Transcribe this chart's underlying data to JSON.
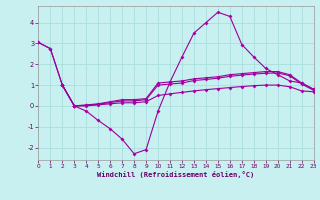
{
  "bg_color": "#c8f0f0",
  "line_color": "#990099",
  "marker_color": "#aa00aa",
  "grid_color": "#aadddd",
  "xlabel": "Windchill (Refroidissement éolien,°C)",
  "xlim": [
    0,
    23
  ],
  "ylim": [
    -2.6,
    4.8
  ],
  "yticks": [
    -2,
    -1,
    0,
    1,
    2,
    3,
    4
  ],
  "xticks": [
    0,
    1,
    2,
    3,
    4,
    5,
    6,
    7,
    8,
    9,
    10,
    11,
    12,
    13,
    14,
    15,
    16,
    17,
    18,
    19,
    20,
    21,
    22,
    23
  ],
  "series": [
    {
      "x": [
        0,
        1,
        2,
        3,
        4,
        5,
        6,
        7,
        8,
        9,
        10,
        11,
        12,
        13,
        14,
        15,
        16,
        17,
        18,
        19,
        20,
        21,
        22,
        23
      ],
      "y": [
        3.05,
        2.75,
        1.0,
        0.0,
        -0.25,
        -0.7,
        -1.1,
        -1.6,
        -2.3,
        -2.1,
        -0.25,
        1.15,
        2.35,
        3.5,
        4.0,
        4.5,
        4.3,
        2.95,
        2.35,
        1.8,
        1.5,
        1.2,
        1.1,
        0.8
      ]
    },
    {
      "x": [
        0,
        1,
        2,
        3,
        4,
        5,
        6,
        7,
        8,
        9,
        10,
        11,
        12,
        13,
        14,
        15,
        16,
        17,
        18,
        19,
        20,
        21,
        22,
        23
      ],
      "y": [
        3.05,
        2.75,
        1.0,
        0.0,
        0.05,
        0.1,
        0.2,
        0.3,
        0.3,
        0.35,
        1.1,
        1.15,
        1.2,
        1.3,
        1.35,
        1.4,
        1.5,
        1.55,
        1.6,
        1.65,
        1.65,
        1.5,
        1.1,
        0.8
      ]
    },
    {
      "x": [
        2,
        3,
        4,
        5,
        6,
        7,
        8,
        9,
        10,
        11,
        12,
        13,
        14,
        15,
        16,
        17,
        18,
        19,
        20,
        21,
        22,
        23
      ],
      "y": [
        1.0,
        0.0,
        0.02,
        0.08,
        0.16,
        0.24,
        0.24,
        0.3,
        1.0,
        1.05,
        1.1,
        1.22,
        1.27,
        1.33,
        1.42,
        1.48,
        1.53,
        1.57,
        1.58,
        1.45,
        1.05,
        0.75
      ]
    },
    {
      "x": [
        2,
        3,
        4,
        5,
        6,
        7,
        8,
        9,
        10,
        11,
        12,
        13,
        14,
        15,
        16,
        17,
        18,
        19,
        20,
        21,
        22,
        23
      ],
      "y": [
        1.0,
        0.0,
        0.0,
        0.05,
        0.1,
        0.15,
        0.15,
        0.2,
        0.5,
        0.58,
        0.65,
        0.72,
        0.78,
        0.83,
        0.88,
        0.93,
        0.97,
        1.0,
        1.0,
        0.92,
        0.72,
        0.68
      ]
    }
  ]
}
